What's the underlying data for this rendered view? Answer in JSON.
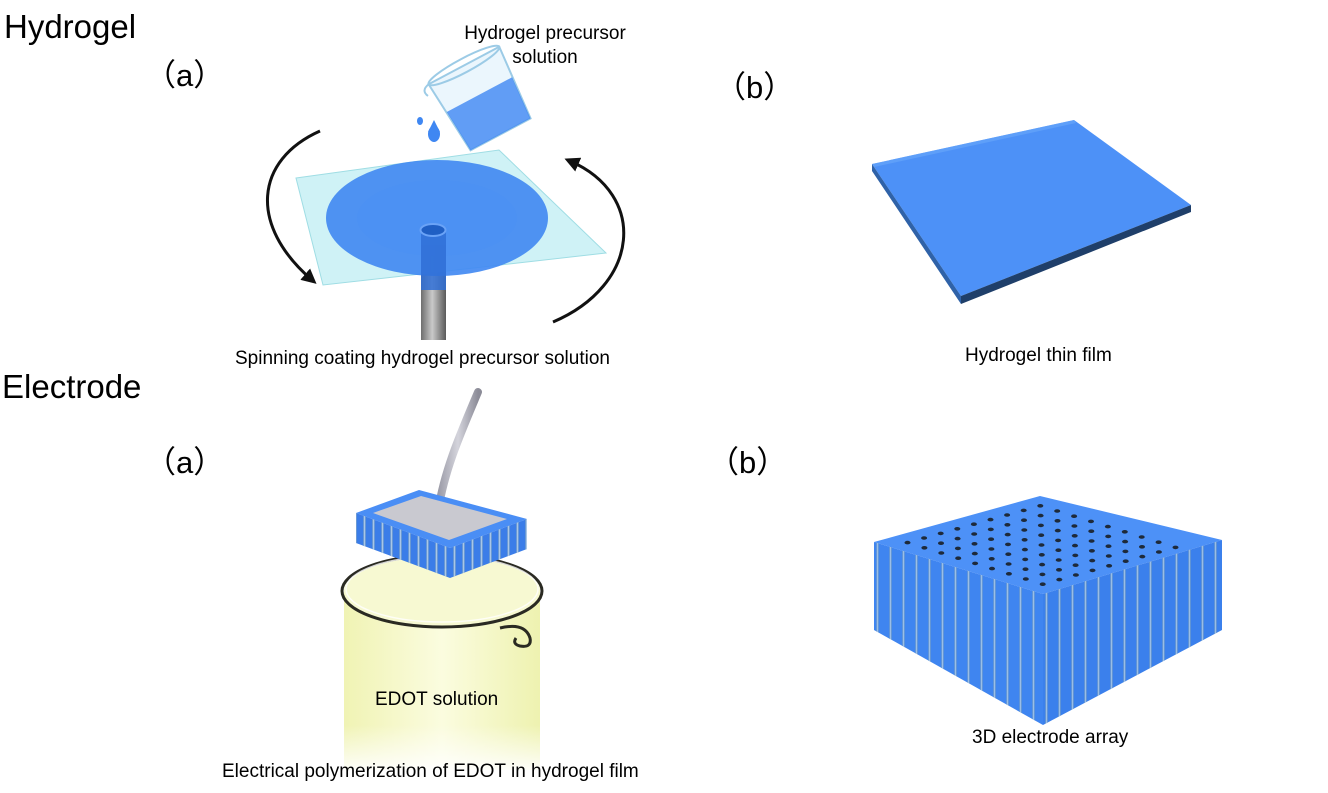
{
  "sections": {
    "hydrogel": "Hydrogel",
    "electrode": "Electrode"
  },
  "hydrogel": {
    "panel_a": "（a）",
    "panel_b": "（b）",
    "precursor_line1": "Hydrogel precursor",
    "precursor_line2": "solution",
    "caption_a": "Spinning coating hydrogel precursor solution",
    "caption_b": "Hydrogel thin film"
  },
  "electrode": {
    "panel_a": "（a）",
    "panel_b": "（b）",
    "beaker_label": "EDOT solution",
    "caption_a": "Electrical polymerization of EDOT in hydrogel film",
    "caption_b": "3D electrode array"
  },
  "colors": {
    "hydrogel_blue": "#4a8ef5",
    "glass_cyan": "#bfeef3",
    "edot_yellow": "#f3f6c2",
    "arrow": "#111111"
  }
}
